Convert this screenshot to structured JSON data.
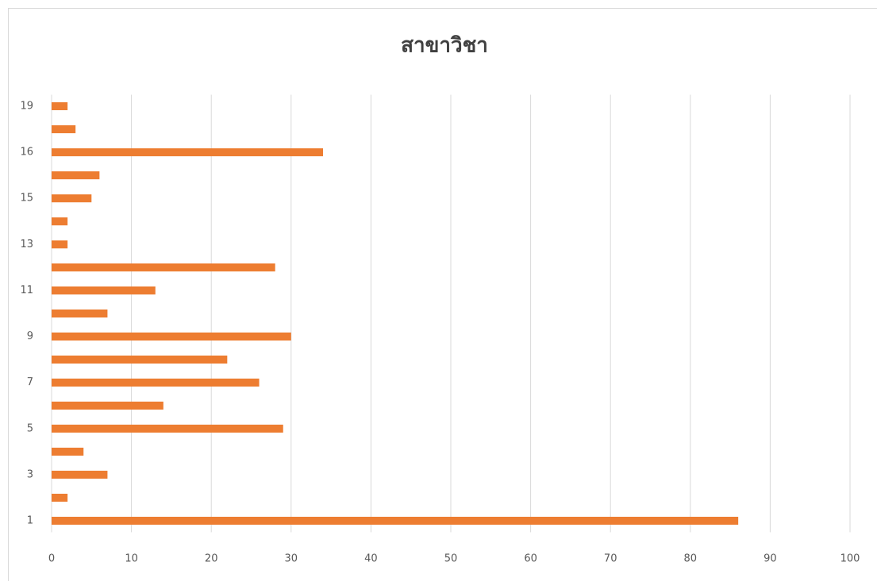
{
  "chart_data": {
    "type": "hbar",
    "title": "สาขาวิชา",
    "categories": [
      "1",
      null,
      "3",
      null,
      "5",
      null,
      "7",
      null,
      "9",
      null,
      "11",
      null,
      "13",
      null,
      "15",
      null,
      "16",
      null,
      "19"
    ],
    "values": [
      86,
      2,
      7,
      4,
      29,
      14,
      26,
      22,
      30,
      7,
      13,
      28,
      2,
      2,
      5,
      6,
      34,
      3,
      2
    ],
    "color": "#ed7d31",
    "xlim": [
      0,
      100
    ],
    "xticks": [
      0,
      10,
      20,
      30,
      40,
      50,
      60,
      70,
      80,
      90,
      100
    ],
    "grid": true
  }
}
